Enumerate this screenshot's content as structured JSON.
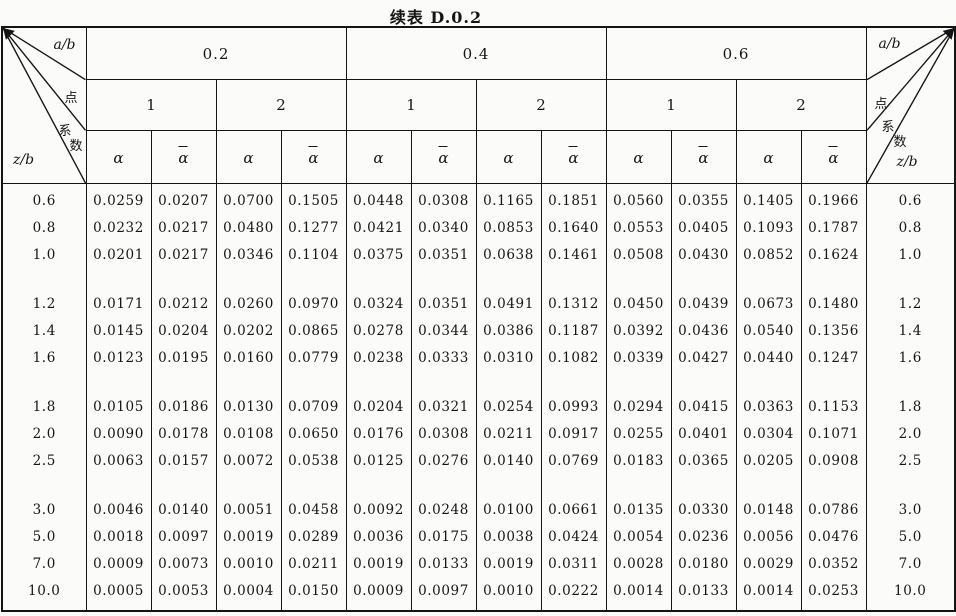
{
  "title": "续表 D.0.2",
  "colors": {
    "ink": "#141414",
    "paper": "#fbfbf9"
  },
  "corner": {
    "ab": "a/b",
    "point": "点",
    "coef_char1": "系",
    "coef_char2": "数",
    "zb": "z/b"
  },
  "table": {
    "groups": [
      {
        "ab": "0.2",
        "points": [
          "1",
          "2"
        ]
      },
      {
        "ab": "0.4",
        "points": [
          "1",
          "2"
        ]
      },
      {
        "ab": "0.6",
        "points": [
          "1",
          "2"
        ]
      }
    ],
    "coef": [
      {
        "base": "α",
        "bar": false,
        "label": "alpha"
      },
      {
        "base": "α",
        "bar": true,
        "label": "alpha-bar"
      }
    ],
    "rows": [
      {
        "zb": "0.6",
        "gap": false,
        "values": [
          "0.0259",
          "0.0207",
          "0.0700",
          "0.1505",
          "0.0448",
          "0.0308",
          "0.1165",
          "0.1851",
          "0.0560",
          "0.0355",
          "0.1405",
          "0.1966"
        ]
      },
      {
        "zb": "0.8",
        "gap": false,
        "values": [
          "0.0232",
          "0.0217",
          "0.0480",
          "0.1277",
          "0.0421",
          "0.0340",
          "0.0853",
          "0.1640",
          "0.0553",
          "0.0405",
          "0.1093",
          "0.1787"
        ]
      },
      {
        "zb": "1.0",
        "gap": false,
        "values": [
          "0.0201",
          "0.0217",
          "0.0346",
          "0.1104",
          "0.0375",
          "0.0351",
          "0.0638",
          "0.1461",
          "0.0508",
          "0.0430",
          "0.0852",
          "0.1624"
        ]
      },
      {
        "zb": "1.2",
        "gap": true,
        "values": [
          "0.0171",
          "0.0212",
          "0.0260",
          "0.0970",
          "0.0324",
          "0.0351",
          "0.0491",
          "0.1312",
          "0.0450",
          "0.0439",
          "0.0673",
          "0.1480"
        ]
      },
      {
        "zb": "1.4",
        "gap": false,
        "values": [
          "0.0145",
          "0.0204",
          "0.0202",
          "0.0865",
          "0.0278",
          "0.0344",
          "0.0386",
          "0.1187",
          "0.0392",
          "0.0436",
          "0.0540",
          "0.1356"
        ]
      },
      {
        "zb": "1.6",
        "gap": false,
        "values": [
          "0.0123",
          "0.0195",
          "0.0160",
          "0.0779",
          "0.0238",
          "0.0333",
          "0.0310",
          "0.1082",
          "0.0339",
          "0.0427",
          "0.0440",
          "0.1247"
        ]
      },
      {
        "zb": "1.8",
        "gap": true,
        "values": [
          "0.0105",
          "0.0186",
          "0.0130",
          "0.0709",
          "0.0204",
          "0.0321",
          "0.0254",
          "0.0993",
          "0.0294",
          "0.0415",
          "0.0363",
          "0.1153"
        ]
      },
      {
        "zb": "2.0",
        "gap": false,
        "values": [
          "0.0090",
          "0.0178",
          "0.0108",
          "0.0650",
          "0.0176",
          "0.0308",
          "0.0211",
          "0.0917",
          "0.0255",
          "0.0401",
          "0.0304",
          "0.1071"
        ]
      },
      {
        "zb": "2.5",
        "gap": false,
        "values": [
          "0.0063",
          "0.0157",
          "0.0072",
          "0.0538",
          "0.0125",
          "0.0276",
          "0.0140",
          "0.0769",
          "0.0183",
          "0.0365",
          "0.0205",
          "0.0908"
        ]
      },
      {
        "zb": "3.0",
        "gap": true,
        "values": [
          "0.0046",
          "0.0140",
          "0.0051",
          "0.0458",
          "0.0092",
          "0.0248",
          "0.0100",
          "0.0661",
          "0.0135",
          "0.0330",
          "0.0148",
          "0.0786"
        ]
      },
      {
        "zb": "5.0",
        "gap": false,
        "values": [
          "0.0018",
          "0.0097",
          "0.0019",
          "0.0289",
          "0.0036",
          "0.0175",
          "0.0038",
          "0.0424",
          "0.0054",
          "0.0236",
          "0.0056",
          "0.0476"
        ]
      },
      {
        "zb": "7.0",
        "gap": false,
        "values": [
          "0.0009",
          "0.0073",
          "0.0010",
          "0.0211",
          "0.0019",
          "0.0133",
          "0.0019",
          "0.0311",
          "0.0028",
          "0.0180",
          "0.0029",
          "0.0352"
        ]
      },
      {
        "zb": "10.0",
        "gap": false,
        "values": [
          "0.0005",
          "0.0053",
          "0.0004",
          "0.0150",
          "0.0009",
          "0.0097",
          "0.0010",
          "0.0222",
          "0.0014",
          "0.0133",
          "0.0014",
          "0.0253"
        ]
      }
    ]
  }
}
